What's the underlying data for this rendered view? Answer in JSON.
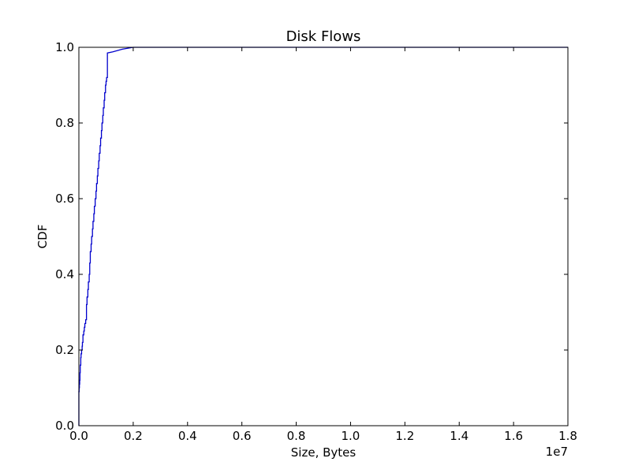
{
  "chart_data": {
    "type": "line",
    "title": "Disk Flows",
    "xlabel": "Size, Bytes",
    "ylabel": "CDF",
    "x_offset_label": "1e7",
    "xlim": [
      0,
      1.8
    ],
    "ylim": [
      0,
      1.0
    ],
    "x_ticks": [
      "0.0",
      "0.2",
      "0.4",
      "0.6",
      "0.8",
      "1.0",
      "1.2",
      "1.4",
      "1.6",
      "1.8"
    ],
    "y_ticks": [
      "0.0",
      "0.2",
      "0.4",
      "0.6",
      "0.8",
      "1.0"
    ],
    "grid": false,
    "line_color": "#0000cc",
    "series": [
      {
        "x": [
          0.0,
          0.0,
          0.001,
          0.002,
          0.003,
          0.004,
          0.005,
          0.007,
          0.008,
          0.01,
          0.012,
          0.013,
          0.015,
          0.018,
          0.02,
          0.022,
          0.025,
          0.028,
          0.03,
          0.033,
          0.035,
          0.038,
          0.04,
          0.042,
          0.045,
          0.047,
          0.05,
          0.052,
          0.055,
          0.057,
          0.06,
          0.063,
          0.065,
          0.068,
          0.07,
          0.073,
          0.075,
          0.078,
          0.08,
          0.083,
          0.085,
          0.088,
          0.09,
          0.093,
          0.095,
          0.098,
          0.1,
          0.102,
          0.105,
          0.105,
          0.125,
          0.16,
          0.2,
          0.21
        ],
        "y": [
          0.0,
          0.05,
          0.09,
          0.1,
          0.11,
          0.12,
          0.14,
          0.16,
          0.18,
          0.19,
          0.2,
          0.21,
          0.22,
          0.24,
          0.25,
          0.26,
          0.27,
          0.28,
          0.32,
          0.34,
          0.36,
          0.38,
          0.4,
          0.43,
          0.46,
          0.48,
          0.5,
          0.52,
          0.54,
          0.56,
          0.58,
          0.6,
          0.62,
          0.64,
          0.66,
          0.68,
          0.7,
          0.72,
          0.74,
          0.76,
          0.78,
          0.8,
          0.82,
          0.84,
          0.86,
          0.88,
          0.9,
          0.91,
          0.92,
          0.985,
          0.988,
          0.995,
          1.0,
          1.0
        ]
      }
    ]
  }
}
